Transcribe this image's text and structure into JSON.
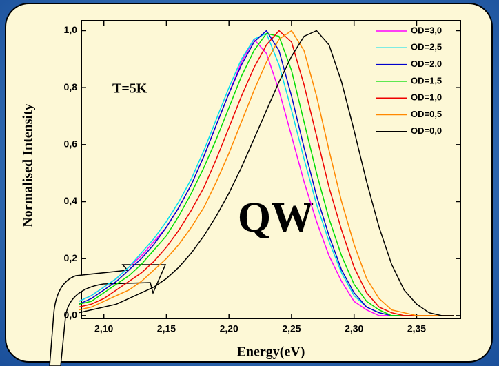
{
  "chart_data": {
    "type": "line",
    "annotations": [
      "T=5K",
      "QW"
    ],
    "x_label": "Energy(eV)",
    "y_label": "Normalised Intensity",
    "x": [
      2.08,
      2.09,
      2.1,
      2.11,
      2.12,
      2.13,
      2.14,
      2.15,
      2.16,
      2.17,
      2.18,
      2.19,
      2.2,
      2.21,
      2.22,
      2.23,
      2.24,
      2.25,
      2.26,
      2.27,
      2.28,
      2.29,
      2.3,
      2.31,
      2.32,
      2.33,
      2.34,
      2.35,
      2.36,
      2.37,
      2.38
    ],
    "series": [
      {
        "name": "OD=3,0",
        "color": "#ff00ff",
        "values": [
          0.05,
          0.07,
          0.1,
          0.13,
          0.17,
          0.21,
          0.26,
          0.31,
          0.38,
          0.46,
          0.56,
          0.67,
          0.78,
          0.89,
          0.97,
          0.92,
          0.79,
          0.63,
          0.47,
          0.33,
          0.21,
          0.12,
          0.05,
          0.02,
          0,
          0,
          0,
          0,
          0,
          0,
          0
        ]
      },
      {
        "name": "OD=2,5",
        "color": "#00e0f0",
        "values": [
          0.05,
          0.07,
          0.1,
          0.13,
          0.17,
          0.22,
          0.27,
          0.33,
          0.4,
          0.48,
          0.58,
          0.69,
          0.8,
          0.9,
          0.97,
          0.99,
          0.88,
          0.72,
          0.55,
          0.39,
          0.26,
          0.15,
          0.07,
          0.03,
          0.01,
          0,
          0,
          0,
          0,
          0,
          0
        ]
      },
      {
        "name": "OD=2,0",
        "color": "#0000cc",
        "values": [
          0.04,
          0.06,
          0.09,
          0.12,
          0.16,
          0.2,
          0.25,
          0.31,
          0.38,
          0.46,
          0.56,
          0.67,
          0.78,
          0.88,
          0.96,
          1.0,
          0.93,
          0.77,
          0.59,
          0.42,
          0.28,
          0.16,
          0.08,
          0.03,
          0.01,
          0,
          0,
          0,
          0,
          0,
          0
        ]
      },
      {
        "name": "OD=1,5",
        "color": "#00dd00",
        "values": [
          0.04,
          0.05,
          0.08,
          0.11,
          0.14,
          0.18,
          0.23,
          0.28,
          0.35,
          0.43,
          0.52,
          0.62,
          0.73,
          0.84,
          0.93,
          0.99,
          0.98,
          0.86,
          0.68,
          0.5,
          0.34,
          0.21,
          0.11,
          0.05,
          0.02,
          0,
          0,
          0,
          0,
          0,
          0
        ]
      },
      {
        "name": "OD=1,0",
        "color": "#ee0000",
        "values": [
          0.03,
          0.04,
          0.06,
          0.09,
          0.12,
          0.15,
          0.19,
          0.24,
          0.3,
          0.37,
          0.45,
          0.55,
          0.66,
          0.77,
          0.87,
          0.95,
          1.0,
          0.96,
          0.81,
          0.63,
          0.45,
          0.3,
          0.17,
          0.08,
          0.03,
          0.01,
          0,
          0,
          0,
          0,
          0
        ]
      },
      {
        "name": "OD=0,5",
        "color": "#ff8800",
        "values": [
          0.02,
          0.03,
          0.05,
          0.07,
          0.09,
          0.12,
          0.16,
          0.2,
          0.25,
          0.31,
          0.38,
          0.47,
          0.57,
          0.68,
          0.79,
          0.89,
          0.97,
          1.0,
          0.93,
          0.77,
          0.58,
          0.4,
          0.25,
          0.13,
          0.06,
          0.02,
          0.01,
          0,
          0,
          0,
          0
        ]
      },
      {
        "name": "OD=0,0",
        "color": "#000000",
        "values": [
          0.01,
          0.02,
          0.03,
          0.04,
          0.06,
          0.08,
          0.1,
          0.13,
          0.17,
          0.22,
          0.28,
          0.35,
          0.43,
          0.52,
          0.62,
          0.72,
          0.82,
          0.91,
          0.98,
          1.0,
          0.95,
          0.82,
          0.65,
          0.47,
          0.31,
          0.18,
          0.09,
          0.04,
          0.01,
          0,
          0
        ]
      }
    ],
    "xlim": [
      2.082,
      2.385
    ],
    "ylim": [
      -0.01,
      1.035
    ],
    "xticks": [
      {
        "value": 2.1,
        "label": "2,10"
      },
      {
        "value": 2.15,
        "label": "2,15"
      },
      {
        "value": 2.2,
        "label": "2,20"
      },
      {
        "value": 2.25,
        "label": "2,25"
      },
      {
        "value": 2.3,
        "label": "2,30"
      },
      {
        "value": 2.35,
        "label": "2,35"
      }
    ],
    "yticks": [
      {
        "value": 0,
        "label": "0,0"
      },
      {
        "value": 0.2,
        "label": "0,2"
      },
      {
        "value": 0.4,
        "label": "0,4"
      },
      {
        "value": 0.6,
        "label": "0,6"
      },
      {
        "value": 0.8,
        "label": "0,8"
      },
      {
        "value": 1.0,
        "label": "1,0"
      }
    ],
    "legend": "upper right"
  }
}
